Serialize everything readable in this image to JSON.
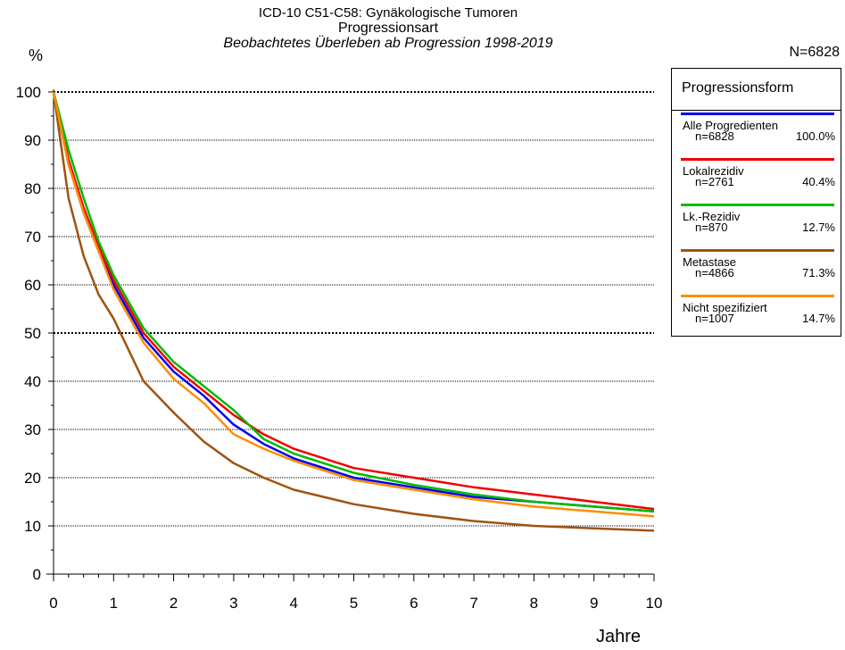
{
  "header": {
    "line1": "ICD-10 C51-C58: Gynäkologische Tumoren",
    "line2": "Progressionsart",
    "line3": "Beobachtetes Überleben ab Progression 1998-2019"
  },
  "unit_label": "%",
  "n_total": "N=6828",
  "legend_title": "Progressionsform",
  "legend": [
    {
      "name": "Alle Progredienten",
      "n": "n=6828",
      "pct": "100.0%",
      "color": "#0000ee"
    },
    {
      "name": "Lokalrezidiv",
      "n": "n=2761",
      "pct": "40.4%",
      "color": "#ee0000"
    },
    {
      "name": "Lk.-Rezidiv",
      "n": "n=870",
      "pct": "12.7%",
      "color": "#00bb00"
    },
    {
      "name": "Metastase",
      "n": "n=4866",
      "pct": "71.3%",
      "color": "#a0520f"
    },
    {
      "name": "Nicht spezifiziert",
      "n": "n=1007",
      "pct": "14.7%",
      "color": "#ff8c00"
    }
  ],
  "chart_data": {
    "type": "line",
    "xlabel": "Jahre",
    "ylabel": "%",
    "xlim": [
      0,
      10
    ],
    "ylim": [
      0,
      100
    ],
    "x_ticks": [
      "0",
      "1",
      "2",
      "3",
      "4",
      "5",
      "6",
      "7",
      "8",
      "9",
      "10"
    ],
    "y_ticks": [
      "0",
      "10",
      "20",
      "30",
      "40",
      "50",
      "60",
      "70",
      "80",
      "90",
      "100"
    ],
    "grid": "horizontal dotted, bold at 50 and 100",
    "x": [
      0,
      0.25,
      0.5,
      0.75,
      1,
      1.5,
      2,
      2.5,
      3,
      3.5,
      4,
      5,
      6,
      7,
      8,
      9,
      10
    ],
    "series": [
      {
        "name": "Alle Progredienten",
        "color": "#0000ee",
        "values": [
          100,
          85,
          75,
          67,
          60,
          49,
          42,
          37,
          31,
          27,
          24,
          20,
          18,
          16,
          15,
          14,
          13
        ]
      },
      {
        "name": "Lokalrezidiv",
        "color": "#ee0000",
        "values": [
          100,
          86,
          76,
          68,
          61,
          50,
          43,
          38,
          33,
          29,
          26,
          22,
          20,
          18,
          16.5,
          15,
          13.5
        ]
      },
      {
        "name": "Lk.-Rezidiv",
        "color": "#00bb00",
        "values": [
          100,
          88,
          78,
          69,
          62,
          51,
          44,
          39,
          34,
          28,
          25,
          21,
          18.5,
          16.5,
          15,
          14,
          13
        ]
      },
      {
        "name": "Metastase",
        "color": "#a0520f",
        "values": [
          100,
          78,
          66,
          58,
          53,
          40,
          33.5,
          27.5,
          23,
          20,
          17.5,
          14.5,
          12.5,
          11,
          10,
          9.5,
          9
        ]
      },
      {
        "name": "Nicht spezifiziert",
        "color": "#ff8c00",
        "values": [
          100,
          85,
          75,
          67,
          59,
          48,
          40.5,
          35.5,
          29,
          26,
          23.5,
          19.5,
          17.5,
          15.5,
          14,
          13,
          12
        ]
      }
    ]
  }
}
